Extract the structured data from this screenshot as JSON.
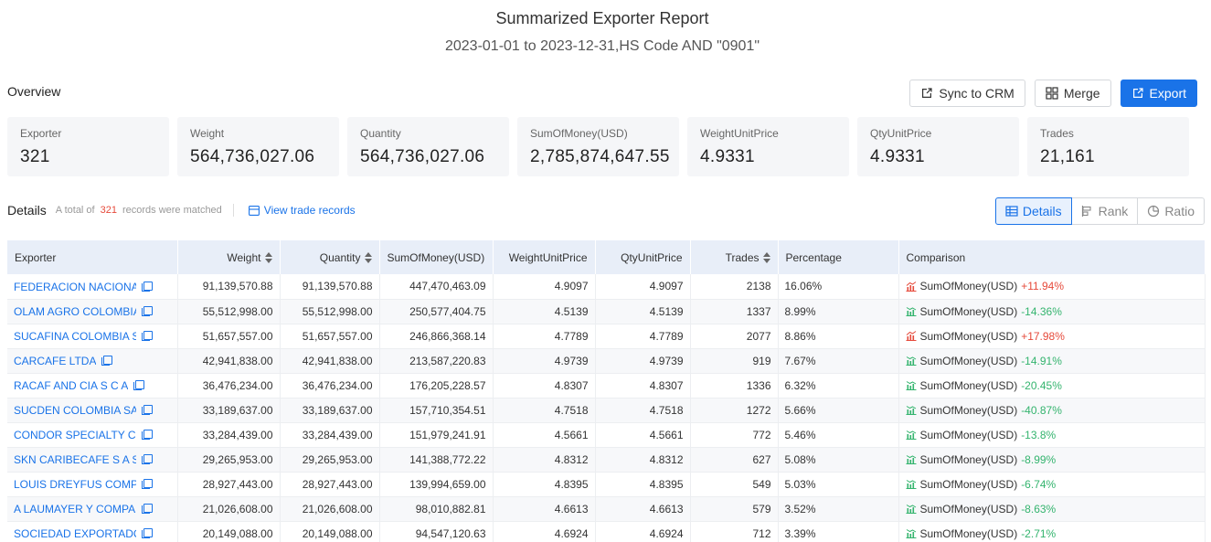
{
  "header": {
    "title": "Summarized Exporter Report",
    "subtitle": "2023-01-01 to 2023-12-31,HS Code AND \"0901\""
  },
  "overview": {
    "label": "Overview",
    "cards": [
      {
        "label": "Exporter",
        "value": "321"
      },
      {
        "label": "Weight",
        "value": "564,736,027.06"
      },
      {
        "label": "Quantity",
        "value": "564,736,027.06"
      },
      {
        "label": "SumOfMoney(USD)",
        "value": "2,785,874,647.55"
      },
      {
        "label": "WeightUnitPrice",
        "value": "4.9331"
      },
      {
        "label": "QtyUnitPrice",
        "value": "4.9331"
      },
      {
        "label": "Trades",
        "value": "21,161"
      }
    ]
  },
  "actions": {
    "sync_label": "Sync to CRM",
    "merge_label": "Merge",
    "export_label": "Export"
  },
  "details": {
    "label": "Details",
    "total_prefix": "A total of",
    "total_count": "321",
    "total_suffix": "records were matched",
    "view_link": "View trade records",
    "tabs": [
      {
        "label": "Details",
        "active": true
      },
      {
        "label": "Rank",
        "active": false
      },
      {
        "label": "Ratio",
        "active": false
      }
    ]
  },
  "table": {
    "columns": [
      "Exporter",
      "Weight",
      "Quantity",
      "SumOfMoney(USD)",
      "WeightUnitPrice",
      "QtyUnitPrice",
      "Trades",
      "Percentage",
      "Comparison"
    ],
    "rows": [
      {
        "exporter": "FEDERACION NACIONAL DE",
        "weight": "91,139,570.88",
        "quantity": "91,139,570.88",
        "sum": "447,470,463.09",
        "wup": "4.9097",
        "qup": "4.9097",
        "trades": "2138",
        "pct": "16.06%",
        "cmp_label": "SumOfMoney(USD)",
        "cmp_value": "+11.94%",
        "trend": "up"
      },
      {
        "exporter": "OLAM AGRO COLOMBIA S",
        "weight": "55,512,998.00",
        "quantity": "55,512,998.00",
        "sum": "250,577,404.75",
        "wup": "4.5139",
        "qup": "4.5139",
        "trades": "1337",
        "pct": "8.99%",
        "cmp_label": "SumOfMoney(USD)",
        "cmp_value": "-14.36%",
        "trend": "down"
      },
      {
        "exporter": "SUCAFINA COLOMBIA S A",
        "weight": "51,657,557.00",
        "quantity": "51,657,557.00",
        "sum": "246,866,368.14",
        "wup": "4.7789",
        "qup": "4.7789",
        "trades": "2077",
        "pct": "8.86%",
        "cmp_label": "SumOfMoney(USD)",
        "cmp_value": "+17.98%",
        "trend": "up"
      },
      {
        "exporter": "CARCAFE LTDA",
        "weight": "42,941,838.00",
        "quantity": "42,941,838.00",
        "sum": "213,587,220.83",
        "wup": "4.9739",
        "qup": "4.9739",
        "trades": "919",
        "pct": "7.67%",
        "cmp_label": "SumOfMoney(USD)",
        "cmp_value": "-14.91%",
        "trend": "down"
      },
      {
        "exporter": "RACAF AND CIA S C A",
        "weight": "36,476,234.00",
        "quantity": "36,476,234.00",
        "sum": "176,205,228.57",
        "wup": "4.8307",
        "qup": "4.8307",
        "trades": "1336",
        "pct": "6.32%",
        "cmp_label": "SumOfMoney(USD)",
        "cmp_value": "-20.45%",
        "trend": "down"
      },
      {
        "exporter": "SUCDEN COLOMBIA SAS",
        "weight": "33,189,637.00",
        "quantity": "33,189,637.00",
        "sum": "157,710,354.51",
        "wup": "4.7518",
        "qup": "4.7518",
        "trades": "1272",
        "pct": "5.66%",
        "cmp_label": "SumOfMoney(USD)",
        "cmp_value": "-40.87%",
        "trend": "down"
      },
      {
        "exporter": "CONDOR SPECIALTY COFFEE",
        "weight": "33,284,439.00",
        "quantity": "33,284,439.00",
        "sum": "151,979,241.91",
        "wup": "4.5661",
        "qup": "4.5661",
        "trades": "772",
        "pct": "5.46%",
        "cmp_label": "SumOfMoney(USD)",
        "cmp_value": "-13.8%",
        "trend": "down"
      },
      {
        "exporter": "SKN CARIBECAFE S A S",
        "weight": "29,265,953.00",
        "quantity": "29,265,953.00",
        "sum": "141,388,772.22",
        "wup": "4.8312",
        "qup": "4.8312",
        "trades": "627",
        "pct": "5.08%",
        "cmp_label": "SumOfMoney(USD)",
        "cmp_value": "-8.99%",
        "trend": "down"
      },
      {
        "exporter": "LOUIS DREYFUS COMPANY",
        "weight": "28,927,443.00",
        "quantity": "28,927,443.00",
        "sum": "139,994,659.00",
        "wup": "4.8395",
        "qup": "4.8395",
        "trades": "549",
        "pct": "5.03%",
        "cmp_label": "SumOfMoney(USD)",
        "cmp_value": "-6.74%",
        "trend": "down"
      },
      {
        "exporter": "A LAUMAYER Y COMPA IA",
        "weight": "21,026,608.00",
        "quantity": "21,026,608.00",
        "sum": "98,010,882.81",
        "wup": "4.6613",
        "qup": "4.6613",
        "trades": "579",
        "pct": "3.52%",
        "cmp_label": "SumOfMoney(USD)",
        "cmp_value": "-8.63%",
        "trend": "down"
      },
      {
        "exporter": "SOCIEDAD EXPORTADORA",
        "weight": "20,149,088.00",
        "quantity": "20,149,088.00",
        "sum": "94,547,120.63",
        "wup": "4.6924",
        "qup": "4.6924",
        "trades": "712",
        "pct": "3.39%",
        "cmp_label": "SumOfMoney(USD)",
        "cmp_value": "-2.71%",
        "trend": "down"
      }
    ]
  },
  "colors": {
    "accent": "#1a73e8",
    "up": "#e64a3b",
    "down": "#34b46e"
  }
}
